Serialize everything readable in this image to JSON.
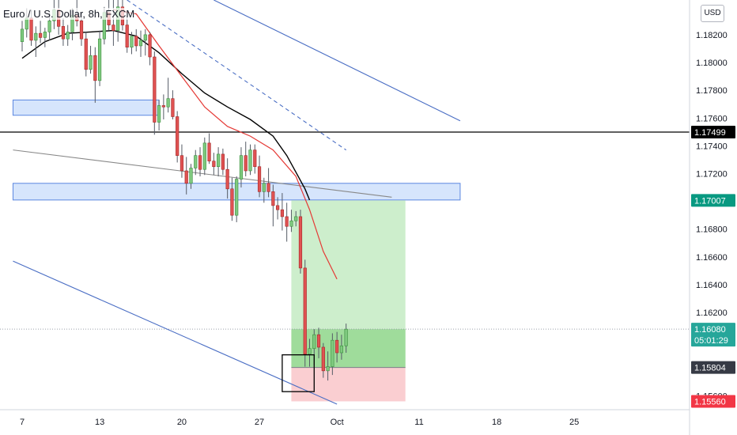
{
  "chart_data": {
    "type": "candlestick",
    "title": "Euro / U.S. Dollar, 8h, FXCM",
    "currency_button": "USD",
    "y_ticks": [
      "1.18200",
      "1.18000",
      "1.17800",
      "1.17600",
      "1.17400",
      "1.17200",
      "1.16800",
      "1.16600",
      "1.16400",
      "1.16200",
      "1.15600"
    ],
    "y_tick_values": [
      1.182,
      1.18,
      1.178,
      1.176,
      1.174,
      1.172,
      1.168,
      1.166,
      1.164,
      1.162,
      1.156
    ],
    "x_ticks": [
      "7",
      "13",
      "20",
      "27",
      "Oct",
      "11",
      "18",
      "25"
    ],
    "x_tick_index": [
      0,
      17,
      35,
      52,
      69,
      87,
      104,
      121
    ],
    "ylim": [
      1.155,
      1.1845
    ],
    "price_badges": [
      {
        "label": "1.17499",
        "value": 1.17499,
        "color": "#000000",
        "text_color": "#ffffff"
      },
      {
        "label": "1.17007",
        "value": 1.17007,
        "color": "#089981",
        "text_color": "#ffffff"
      },
      {
        "label": "1.16080",
        "value": 1.1608,
        "countdown": "05:01:29",
        "color": "#26a69a",
        "text_color": "#ffffff"
      },
      {
        "label": "1.15804",
        "value": 1.15804,
        "color": "#363a45",
        "text_color": "#ffffff"
      },
      {
        "label": "1.15560",
        "value": 1.1556,
        "color": "#f23645",
        "text_color": "#ffffff"
      }
    ],
    "candles": [
      [
        1.1815,
        1.183,
        1.1808,
        1.1824
      ],
      [
        1.1824,
        1.1839,
        1.1818,
        1.1832
      ],
      [
        1.1832,
        1.1838,
        1.1812,
        1.1816
      ],
      [
        1.1816,
        1.1826,
        1.1804,
        1.1821
      ],
      [
        1.1821,
        1.183,
        1.1814,
        1.1818
      ],
      [
        1.1818,
        1.1825,
        1.1811,
        1.1822
      ],
      [
        1.1822,
        1.1836,
        1.1816,
        1.183
      ],
      [
        1.183,
        1.1845,
        1.1824,
        1.1838
      ],
      [
        1.1838,
        1.1845,
        1.182,
        1.1826
      ],
      [
        1.1826,
        1.1832,
        1.1812,
        1.1817
      ],
      [
        1.1817,
        1.1827,
        1.1812,
        1.1822
      ],
      [
        1.1822,
        1.1839,
        1.1816,
        1.1834
      ],
      [
        1.1834,
        1.1845,
        1.1826,
        1.183
      ],
      [
        1.183,
        1.1836,
        1.1812,
        1.1817
      ],
      [
        1.1817,
        1.1822,
        1.179,
        1.1795
      ],
      [
        1.1795,
        1.1812,
        1.1792,
        1.1805
      ],
      [
        1.1805,
        1.1811,
        1.1771,
        1.1787
      ],
      [
        1.1787,
        1.1823,
        1.1783,
        1.1817
      ],
      [
        1.1817,
        1.184,
        1.1813,
        1.1836
      ],
      [
        1.1836,
        1.1845,
        1.1823,
        1.1827
      ],
      [
        1.1827,
        1.1845,
        1.1812,
        1.1823
      ],
      [
        1.1823,
        1.1845,
        1.1815,
        1.184
      ],
      [
        1.184,
        1.1845,
        1.1823,
        1.1827
      ],
      [
        1.1827,
        1.1834,
        1.1807,
        1.1811
      ],
      [
        1.1811,
        1.1822,
        1.1806,
        1.1819
      ],
      [
        1.1819,
        1.1824,
        1.1808,
        1.1812
      ],
      [
        1.1812,
        1.1823,
        1.1804,
        1.1816
      ],
      [
        1.1816,
        1.1824,
        1.1805,
        1.182
      ],
      [
        1.182,
        1.1822,
        1.1798,
        1.1804
      ],
      [
        1.1804,
        1.1808,
        1.1748,
        1.1757
      ],
      [
        1.1757,
        1.1773,
        1.1751,
        1.1769
      ],
      [
        1.1769,
        1.1777,
        1.1759,
        1.1768
      ],
      [
        1.1768,
        1.1789,
        1.1764,
        1.1774
      ],
      [
        1.1774,
        1.178,
        1.1759,
        1.1761
      ],
      [
        1.1761,
        1.1765,
        1.1728,
        1.1733
      ],
      [
        1.1733,
        1.1741,
        1.1717,
        1.1722
      ],
      [
        1.1722,
        1.1732,
        1.1705,
        1.1713
      ],
      [
        1.1713,
        1.1727,
        1.1709,
        1.1724
      ],
      [
        1.1724,
        1.1737,
        1.1719,
        1.1733
      ],
      [
        1.1733,
        1.1739,
        1.1718,
        1.1723
      ],
      [
        1.1723,
        1.1746,
        1.1719,
        1.1742
      ],
      [
        1.1742,
        1.1749,
        1.1727,
        1.1729
      ],
      [
        1.1729,
        1.1735,
        1.1719,
        1.1725
      ],
      [
        1.1725,
        1.1739,
        1.1718,
        1.1734
      ],
      [
        1.1734,
        1.1738,
        1.1719,
        1.1723
      ],
      [
        1.1723,
        1.1731,
        1.1702,
        1.1709
      ],
      [
        1.1709,
        1.1717,
        1.1686,
        1.169
      ],
      [
        1.169,
        1.1718,
        1.1685,
        1.1716
      ],
      [
        1.1716,
        1.1739,
        1.171,
        1.1733
      ],
      [
        1.1733,
        1.1743,
        1.1718,
        1.1722
      ],
      [
        1.1722,
        1.1741,
        1.1719,
        1.1737
      ],
      [
        1.1737,
        1.1741,
        1.172,
        1.1725
      ],
      [
        1.1725,
        1.1733,
        1.1703,
        1.1707
      ],
      [
        1.1707,
        1.1717,
        1.1699,
        1.1713
      ],
      [
        1.1713,
        1.1724,
        1.1703,
        1.1707
      ],
      [
        1.1707,
        1.1712,
        1.1682,
        1.1697
      ],
      [
        1.1697,
        1.1703,
        1.1687,
        1.1694
      ],
      [
        1.1694,
        1.1706,
        1.1679,
        1.1689
      ],
      [
        1.1689,
        1.1699,
        1.1671,
        1.1682
      ],
      [
        1.1682,
        1.1694,
        1.1678,
        1.1686
      ],
      [
        1.1686,
        1.1693,
        1.1682,
        1.1689
      ],
      [
        1.1689,
        1.1694,
        1.1648,
        1.1652
      ],
      [
        1.1652,
        1.1658,
        1.1581,
        1.159
      ],
      [
        1.159,
        1.1601,
        1.1581,
        1.1594
      ],
      [
        1.1594,
        1.1608,
        1.1582,
        1.1604
      ],
      [
        1.1604,
        1.1609,
        1.1587,
        1.1595
      ],
      [
        1.1595,
        1.1598,
        1.1573,
        1.1578
      ],
      [
        1.1578,
        1.1592,
        1.1571,
        1.1581
      ],
      [
        1.1581,
        1.1605,
        1.1575,
        1.16
      ],
      [
        1.16,
        1.1606,
        1.1584,
        1.1591
      ],
      [
        1.1591,
        1.1604,
        1.1586,
        1.1596
      ],
      [
        1.1596,
        1.1612,
        1.1591,
        1.1608
      ]
    ],
    "ema_fast": [
      [
        20,
        1.1838
      ],
      [
        25,
        1.1835
      ],
      [
        30,
        1.1812
      ],
      [
        35,
        1.179
      ],
      [
        40,
        1.1768
      ],
      [
        45,
        1.1754
      ],
      [
        50,
        1.1747
      ],
      [
        55,
        1.1737
      ],
      [
        60,
        1.1718
      ],
      [
        63,
        1.1694
      ],
      [
        66,
        1.1664
      ],
      [
        69,
        1.1644
      ]
    ],
    "ema_slow": [
      [
        0,
        1.1803
      ],
      [
        5,
        1.1815
      ],
      [
        10,
        1.1821
      ],
      [
        15,
        1.1822
      ],
      [
        20,
        1.1823
      ],
      [
        25,
        1.1819
      ],
      [
        30,
        1.1807
      ],
      [
        35,
        1.1792
      ],
      [
        40,
        1.1778
      ],
      [
        45,
        1.1768
      ],
      [
        50,
        1.1759
      ],
      [
        55,
        1.1747
      ],
      [
        58,
        1.1733
      ],
      [
        60,
        1.1721
      ],
      [
        62,
        1.1709
      ],
      [
        63,
        1.1701
      ]
    ],
    "zones": [
      {
        "name": "upper-zone",
        "x_start": -2,
        "x_end": 30,
        "y_top": 1.1773,
        "y_bottom": 1.1762
      },
      {
        "name": "lower-zone",
        "x_start": -2,
        "x_end": 96,
        "y_top": 1.1713,
        "y_bottom": 1.1701
      }
    ],
    "horizontal_line": 1.17499,
    "position": {
      "x_start": 59,
      "x_end": 84,
      "entry": 1.15804,
      "target": 1.17007,
      "stop": 1.1556,
      "current": 1.1608
    },
    "trendlines": [
      {
        "name": "channel-top",
        "x1": 42,
        "y1": 1.1845,
        "x2": 96,
        "y2": 1.1758,
        "style": "solid",
        "color": "#4a6ec4"
      },
      {
        "name": "channel-bottom",
        "x1": -2,
        "y1": 1.1657,
        "x2": 69,
        "y2": 1.1554,
        "style": "solid",
        "color": "#4a6ec4"
      },
      {
        "name": "dashed-line",
        "x1": 23,
        "y1": 1.1845,
        "x2": 71,
        "y2": 1.1737,
        "style": "dashed",
        "color": "#4a6ec4"
      },
      {
        "name": "gray-line",
        "x1": -2,
        "y1": 1.1737,
        "x2": 81,
        "y2": 1.1703,
        "style": "solid",
        "color": "#888888"
      }
    ],
    "box": {
      "x_start": 57,
      "x_end": 64,
      "y_top": 1.15895,
      "y_bottom": 1.1563
    },
    "countdown": "05:01:29"
  }
}
